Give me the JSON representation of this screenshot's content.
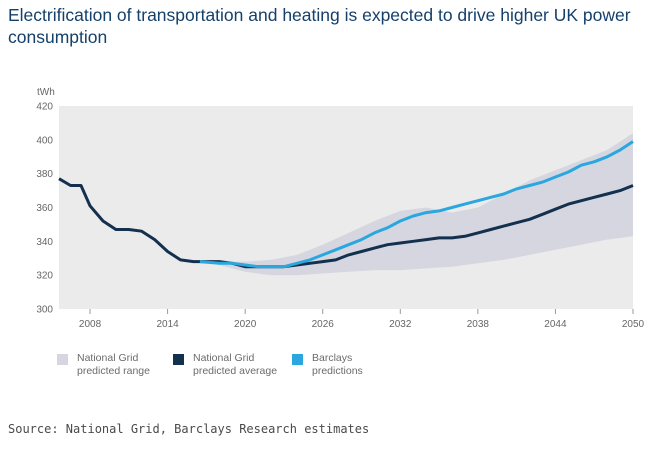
{
  "header": {
    "title": "Electrification of transportation and heating is expected to drive higher UK power consumption"
  },
  "footer": {
    "source": "Source: National Grid, Barclays Research estimates"
  },
  "colors": {
    "range": "#d6d6e0",
    "plot_background": "#ebebeb",
    "average": "#13304f",
    "barclays": "#2aa7df"
  },
  "chart_data": {
    "type": "line",
    "ylabel": "tWh",
    "ylim": [
      300,
      420
    ],
    "xlim": [
      2005.6,
      2050
    ],
    "yticks": [
      300,
      320,
      340,
      360,
      380,
      400,
      420
    ],
    "xticks": [
      2008,
      2014,
      2020,
      2026,
      2032,
      2038,
      2044,
      2050
    ],
    "grid": false,
    "legend_position": "bottom",
    "range": {
      "name": "National Grid predicted range",
      "x": [
        2016.5,
        2018,
        2020,
        2022,
        2024,
        2026,
        2028,
        2030,
        2032,
        2034,
        2036,
        2038,
        2040,
        2042,
        2044,
        2046,
        2048,
        2050
      ],
      "upper": [
        328,
        328,
        328,
        329,
        332,
        338,
        345,
        352,
        358,
        360,
        357,
        360,
        368,
        376,
        382,
        388,
        394,
        404
      ],
      "lower": [
        328,
        326,
        322,
        320,
        320,
        321,
        322,
        323,
        323,
        324,
        325,
        327,
        329,
        332,
        335,
        338,
        341,
        343
      ]
    },
    "series": [
      {
        "name": "National Grid predicted average",
        "x": [
          2005.6,
          2006.5,
          2007.3,
          2008,
          2009,
          2010,
          2011,
          2012,
          2013,
          2014,
          2015,
          2016,
          2017,
          2018,
          2019,
          2020,
          2021,
          2022,
          2023,
          2024,
          2025,
          2026,
          2027,
          2028,
          2029,
          2030,
          2031,
          2032,
          2033,
          2034,
          2035,
          2036,
          2037,
          2038,
          2039,
          2040,
          2041,
          2042,
          2043,
          2044,
          2045,
          2046,
          2047,
          2048,
          2049,
          2050
        ],
        "values": [
          377,
          373,
          373,
          361,
          352,
          347,
          347,
          346,
          341,
          334,
          329,
          328,
          328,
          328,
          327,
          325,
          325,
          325,
          325,
          326,
          327,
          328,
          329,
          332,
          334,
          336,
          338,
          339,
          340,
          341,
          342,
          342,
          343,
          345,
          347,
          349,
          351,
          353,
          356,
          359,
          362,
          364,
          366,
          368,
          370,
          373
        ]
      },
      {
        "name": "Barclays predictions",
        "x": [
          2016.5,
          2018,
          2019,
          2020,
          2021,
          2022,
          2023,
          2024,
          2025,
          2026,
          2027,
          2028,
          2029,
          2030,
          2031,
          2032,
          2033,
          2034,
          2035,
          2036,
          2037,
          2038,
          2039,
          2040,
          2041,
          2042,
          2043,
          2044,
          2045,
          2046,
          2047,
          2048,
          2049,
          2050
        ],
        "values": [
          328,
          327,
          327,
          326,
          325,
          325,
          325,
          327,
          329,
          332,
          335,
          338,
          341,
          345,
          348,
          352,
          355,
          357,
          358,
          360,
          362,
          364,
          366,
          368,
          371,
          373,
          375,
          378,
          381,
          385,
          387,
          390,
          394,
          399
        ]
      }
    ]
  },
  "legend": {
    "range_label": "National Grid\npredicted range",
    "average_label": "National Grid\npredicted average",
    "barclays_label": "Barclays\npredictions"
  }
}
